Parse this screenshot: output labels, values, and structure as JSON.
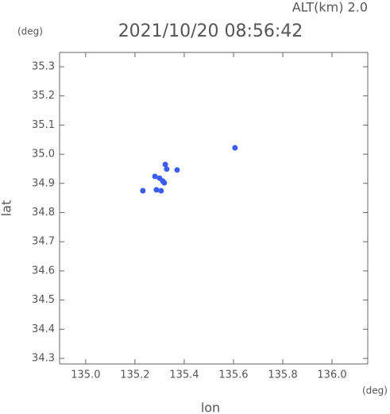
{
  "chart_data": {
    "type": "scatter",
    "altitude_label": "ALT(km) 2.0",
    "title": "2021/10/20 08:56:42",
    "y_unit": "(deg)",
    "x_unit": "(deg)",
    "x_label": "lon",
    "y_label": "lat",
    "xlim": [
      134.894,
      136.145
    ],
    "ylim": [
      34.281,
      35.349
    ],
    "xticks": [
      {
        "value": 135.0,
        "label": "135.0"
      },
      135.2,
      135.4,
      135.6,
      135.8,
      {
        "value": 136.0,
        "label": "136.0"
      }
    ],
    "yticks": [
      34.3,
      34.4,
      34.5,
      34.6,
      34.7,
      34.8,
      34.9,
      {
        "value": 35.0,
        "label": "35.0"
      },
      35.1,
      35.2,
      35.3
    ],
    "series": [
      {
        "color": "#3b5cf0",
        "x": [
          135.323,
          135.281,
          135.3,
          135.319,
          135.313,
          135.287,
          135.306,
          135.232,
          135.371,
          135.329,
          135.606
        ],
        "values": [
          34.965,
          34.924,
          34.918,
          34.902,
          34.908,
          34.878,
          34.875,
          34.875,
          34.946,
          34.949,
          35.022
        ]
      }
    ]
  }
}
